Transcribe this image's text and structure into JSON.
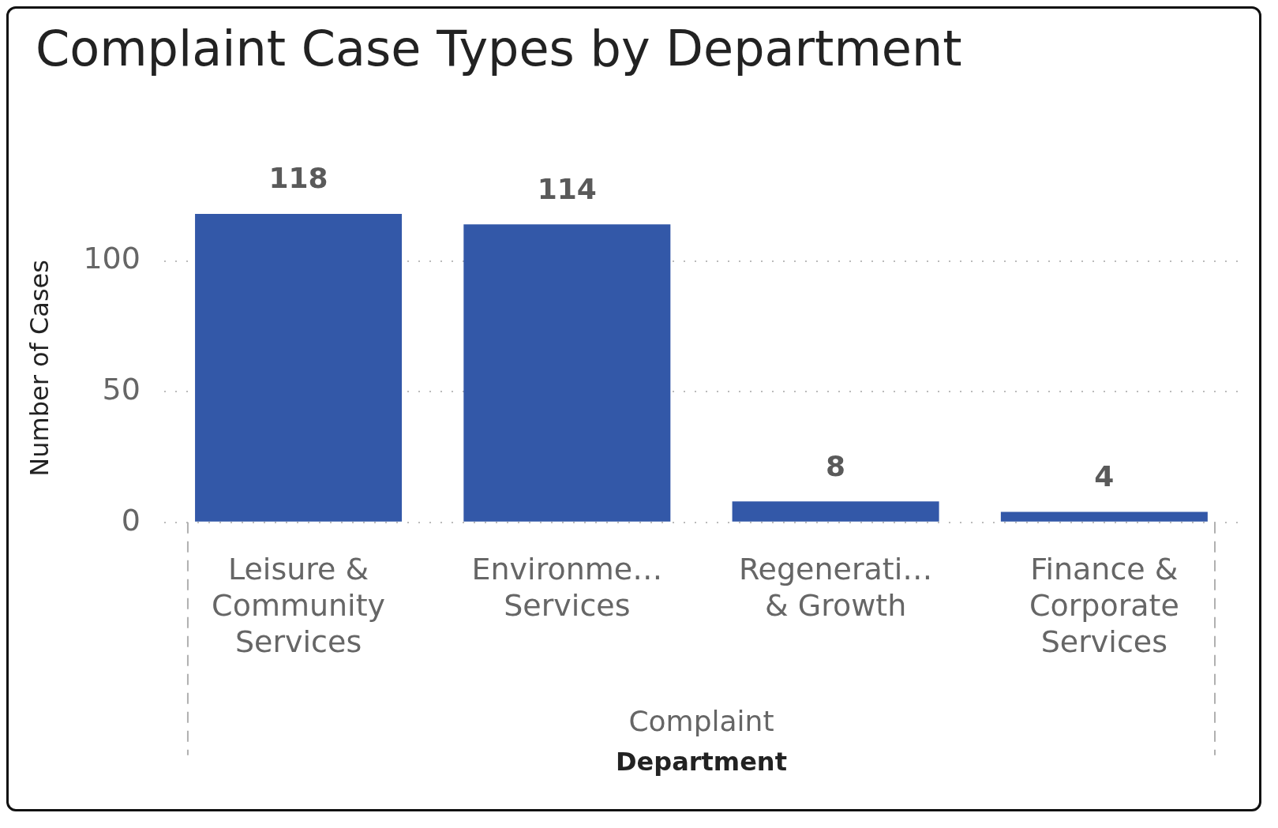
{
  "chart_data": {
    "type": "bar",
    "title": "Complaint Case Types by Department",
    "categories": [
      "Leisure & Community Services",
      "Environme… Services",
      "Regenerati… & Growth",
      "Finance & Corporate Services"
    ],
    "values": [
      118,
      114,
      8,
      4
    ],
    "color": "#3358a8",
    "ylim": [
      0,
      118
    ],
    "yticks": [
      0,
      50,
      100
    ],
    "grid": "y",
    "data_labels": true,
    "xlabel": "Department",
    "ylabel": "Number of Cases",
    "annotations": [
      "Complaint"
    ]
  }
}
